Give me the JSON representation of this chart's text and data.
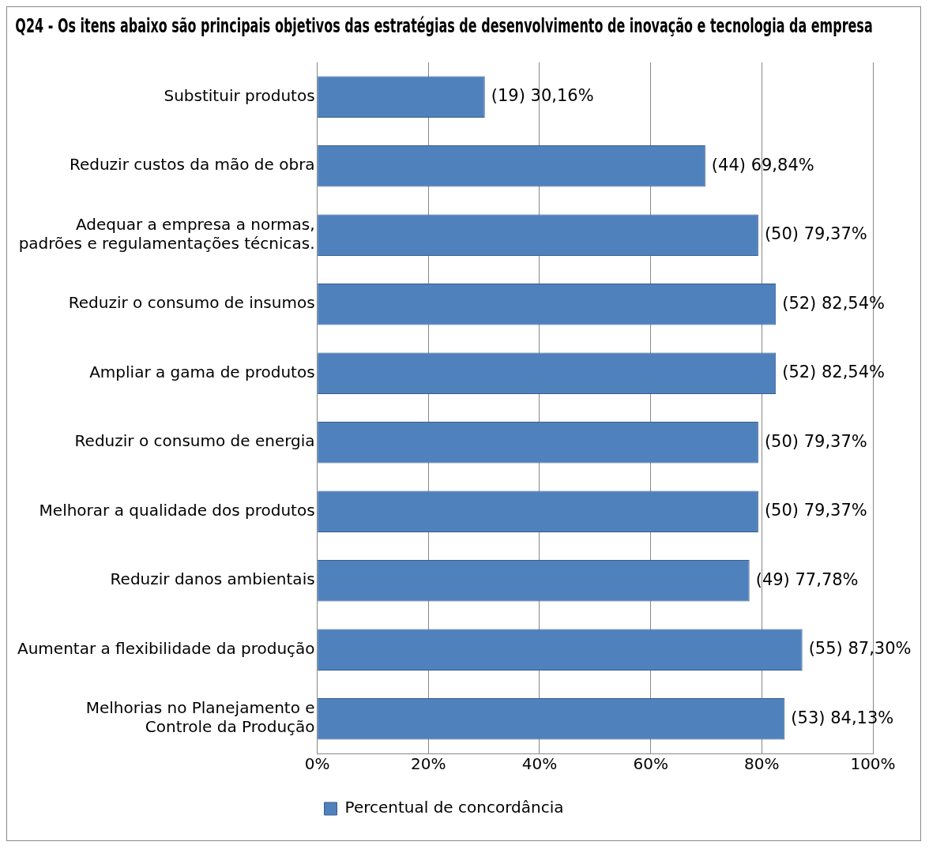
{
  "chart_data": {
    "type": "bar",
    "orientation": "horizontal",
    "title": "Q24 - Os itens abaixo são principais objetivos das estratégias de desenvolvimento de inovação e tecnologia da empresa",
    "categories": [
      "Substituir produtos",
      "Reduzir custos da mão de obra",
      "Adequar a empresa a normas,\npadrões e regulamentações técnicas.",
      "Reduzir o consumo de insumos",
      "Ampliar a gama de produtos",
      "Reduzir o consumo de energia",
      "Melhorar a qualidade dos produtos",
      "Reduzir danos ambientais",
      "Aumentar a flexibilidade da produção",
      "Melhorias no Planejamento e\nControle da Produção"
    ],
    "series": [
      {
        "name": "Percentual de concordância",
        "color": "#4f81bd",
        "values": [
          30.16,
          69.84,
          79.37,
          82.54,
          82.54,
          79.37,
          79.37,
          77.78,
          87.3,
          84.13
        ],
        "value_labels": [
          "(19) 30,16%",
          "(44) 69,84%",
          "(50) 79,37%",
          "(52) 82,54%",
          "(52) 82,54%",
          "(50) 79,37%",
          "(50) 79,37%",
          "(49) 77,78%",
          "(55) 87,30%",
          "(53) 84,13%"
        ]
      }
    ],
    "xlim": [
      0,
      100
    ],
    "xticks": [
      {
        "value": 0,
        "label": "0%"
      },
      {
        "value": 20,
        "label": "20%"
      },
      {
        "value": 40,
        "label": "40%"
      },
      {
        "value": 60,
        "label": "60%"
      },
      {
        "value": 80,
        "label": "80%"
      },
      {
        "value": 100,
        "label": "100%"
      }
    ],
    "grid": "x",
    "legend": "bottom"
  }
}
